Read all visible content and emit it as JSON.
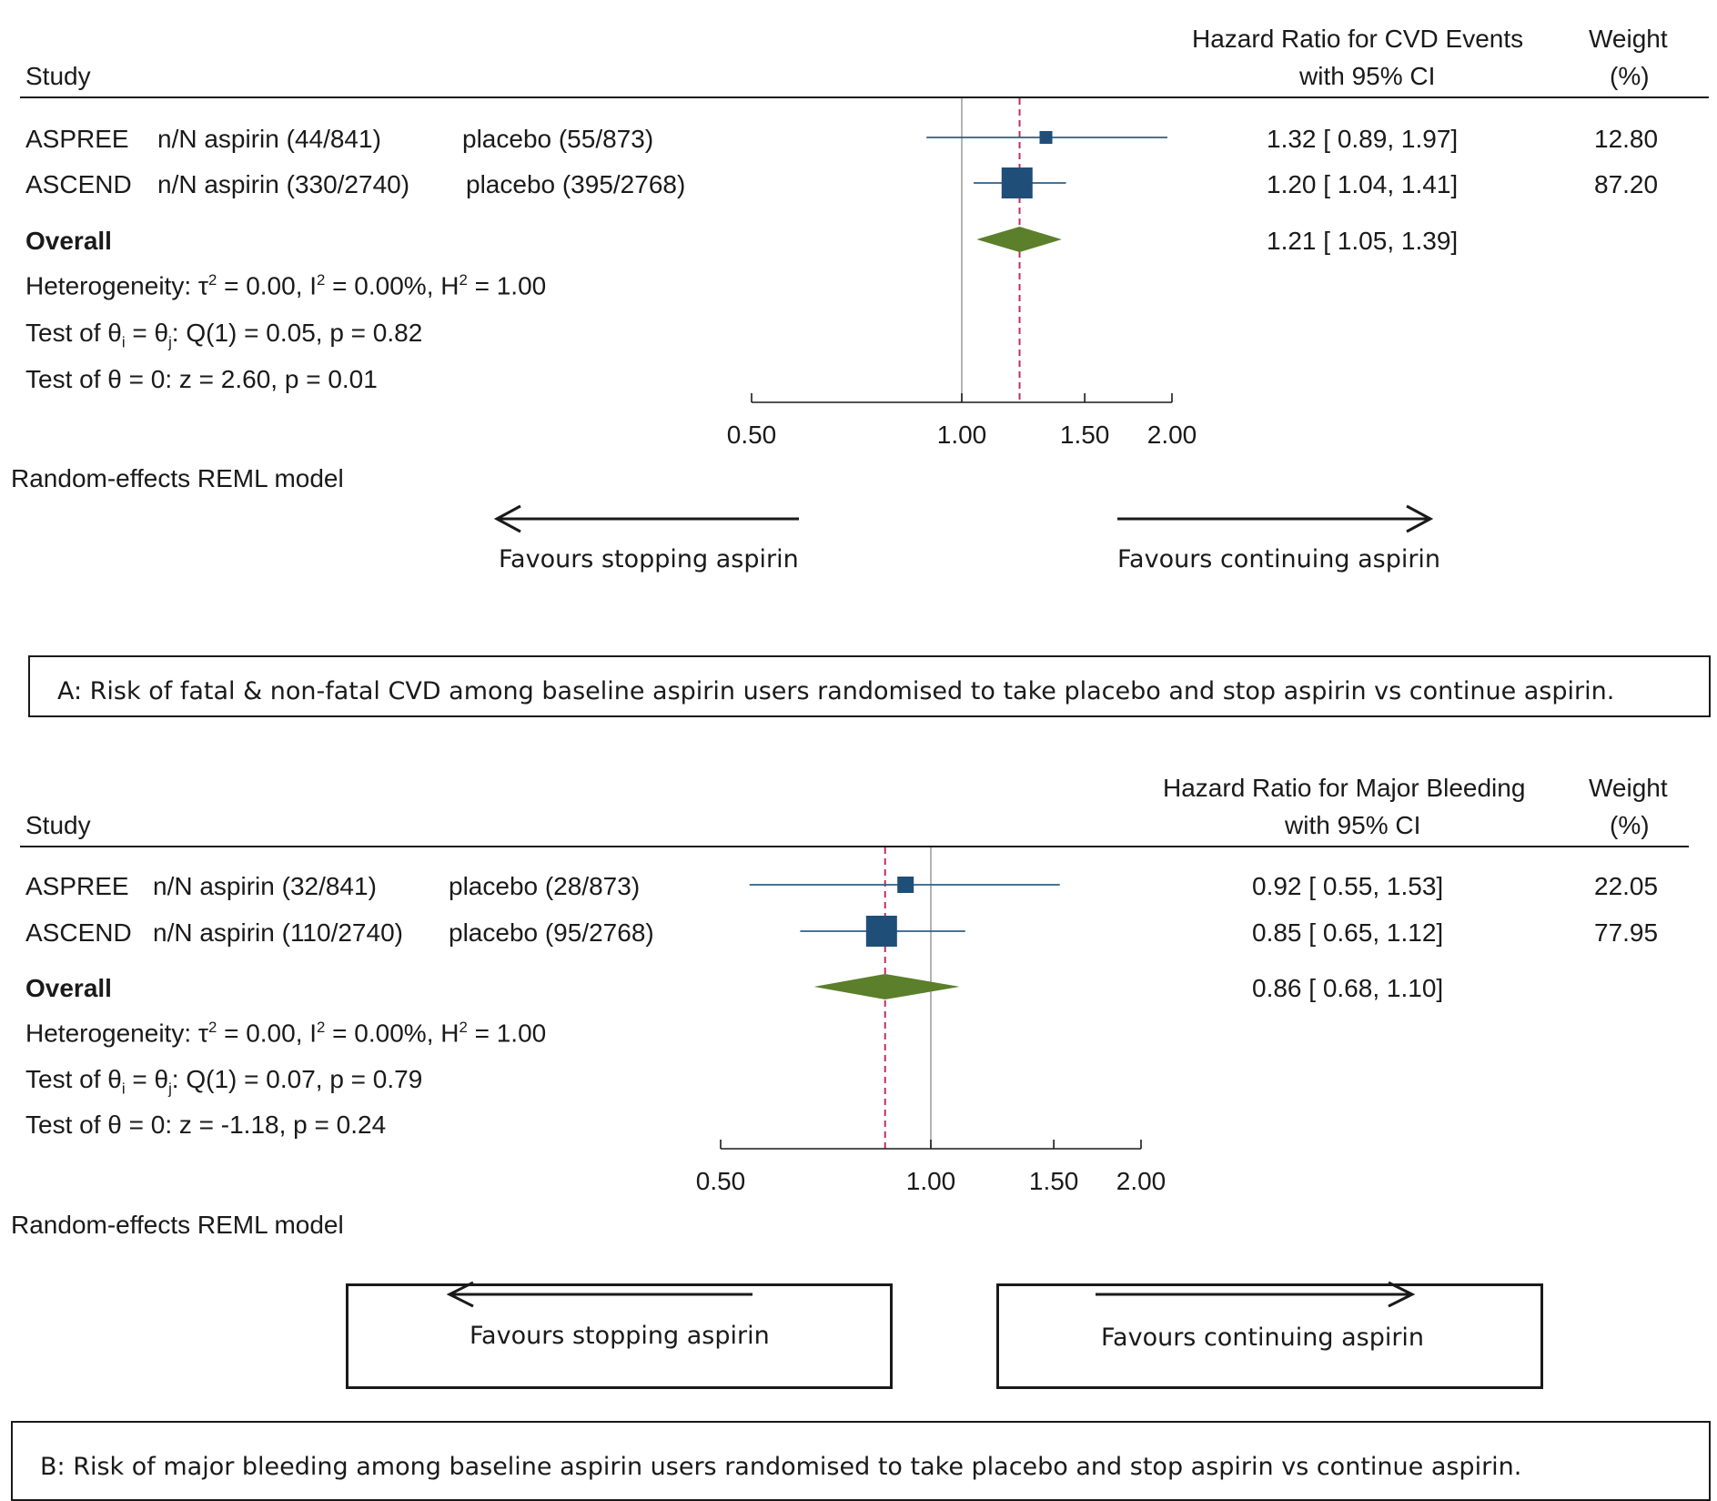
{
  "chart_data": [
    {
      "type": "forest",
      "panel": "A",
      "col_study": "Study",
      "col_effect_line1": "Hazard Ratio for CVD Events",
      "col_effect_line2": "with 95% CI",
      "col_weight_line1": "Weight",
      "col_weight_line2": "(%)",
      "studies": [
        {
          "name": "ASPREE",
          "aspirin": "n/N aspirin (44/841)",
          "placebo": "placebo (55/873)",
          "hr": 1.32,
          "lo": 0.89,
          "hi": 1.97,
          "ci_text": "1.32 [ 0.89,  1.97]",
          "weight": "12.80"
        },
        {
          "name": "ASCEND",
          "aspirin": "n/N aspirin (330/2740)",
          "placebo": "placebo (395/2768)",
          "hr": 1.2,
          "lo": 1.04,
          "hi": 1.41,
          "ci_text": "1.20 [ 1.04,  1.41]",
          "weight": "87.20"
        }
      ],
      "overall": {
        "label": "Overall",
        "hr": 1.21,
        "lo": 1.05,
        "hi": 1.39,
        "ci_text": "1.21 [ 1.05,  1.39]"
      },
      "heterogeneity_prefix": "Heterogeneity: τ",
      "heterogeneity_a": " = 0.00, I",
      "heterogeneity_b": " = 0.00%, H",
      "heterogeneity_c": " = 1.00",
      "superscript": "2",
      "test_theta_prefix": "Test of θ",
      "sub_i": "i",
      "test_theta_mid": " = θ",
      "sub_j": "j",
      "test_theta_suffix": ": Q(1) = 0.05, p = 0.82",
      "test_zero": "Test of θ = 0: z = 2.60, p = 0.01",
      "ticks": [
        0.5,
        1.0,
        1.5,
        2.0
      ],
      "tick_labels": [
        "0.50",
        "1.00",
        "1.50",
        "2.00"
      ],
      "model": "Random-effects REML model",
      "favours_left": "Favours stopping aspirin",
      "favours_right": "Favours continuing aspirin",
      "caption": "A: Risk of fatal & non-fatal CVD among baseline aspirin users randomised to take placebo and stop aspirin vs continue aspirin."
    },
    {
      "type": "forest",
      "panel": "B",
      "col_study": "Study",
      "col_effect_line1": "Hazard Ratio for Major Bleeding",
      "col_effect_line2": "with 95% CI",
      "col_weight_line1": "Weight",
      "col_weight_line2": "(%)",
      "studies": [
        {
          "name": "ASPREE",
          "aspirin": "n/N aspirin (32/841)",
          "placebo": "placebo (28/873)",
          "hr": 0.92,
          "lo": 0.55,
          "hi": 1.53,
          "ci_text": "0.92 [ 0.55,  1.53]",
          "weight": "22.05"
        },
        {
          "name": "ASCEND",
          "aspirin": "n/N aspirin (110/2740)",
          "placebo": "placebo (95/2768)",
          "hr": 0.85,
          "lo": 0.65,
          "hi": 1.12,
          "ci_text": "0.85 [ 0.65,  1.12]",
          "weight": "77.95"
        }
      ],
      "overall": {
        "label": "Overall",
        "hr": 0.86,
        "lo": 0.68,
        "hi": 1.1,
        "ci_text": "0.86 [ 0.68,  1.10]"
      },
      "heterogeneity_prefix": "Heterogeneity: τ",
      "heterogeneity_a": " = 0.00, I",
      "heterogeneity_b": " = 0.00%, H",
      "heterogeneity_c": " = 1.00",
      "superscript": "2",
      "test_theta_prefix": "Test of θ",
      "sub_i": "i",
      "test_theta_mid": " = θ",
      "sub_j": "j",
      "test_theta_suffix": ": Q(1) = 0.07, p = 0.79",
      "test_zero": "Test of θ = 0: z = -1.18, p = 0.24",
      "ticks": [
        0.5,
        1.0,
        1.5,
        2.0
      ],
      "tick_labels": [
        "0.50",
        "1.00",
        "1.50",
        "2.00"
      ],
      "model": "Random-effects REML model",
      "favours_left": "Favours stopping aspirin",
      "favours_right": "Favours continuing aspirin",
      "caption": "B: Risk of major bleeding among baseline aspirin users randomised to take placebo and stop aspirin vs continue aspirin."
    }
  ],
  "colors": {
    "marker": "#1f4e79",
    "ci_line": "#2f5f8a",
    "diamond": "#5b7f2a",
    "ref_dashed": "#c0305a",
    "null_line": "#9a9a9a",
    "text": "#1a1a1a"
  }
}
